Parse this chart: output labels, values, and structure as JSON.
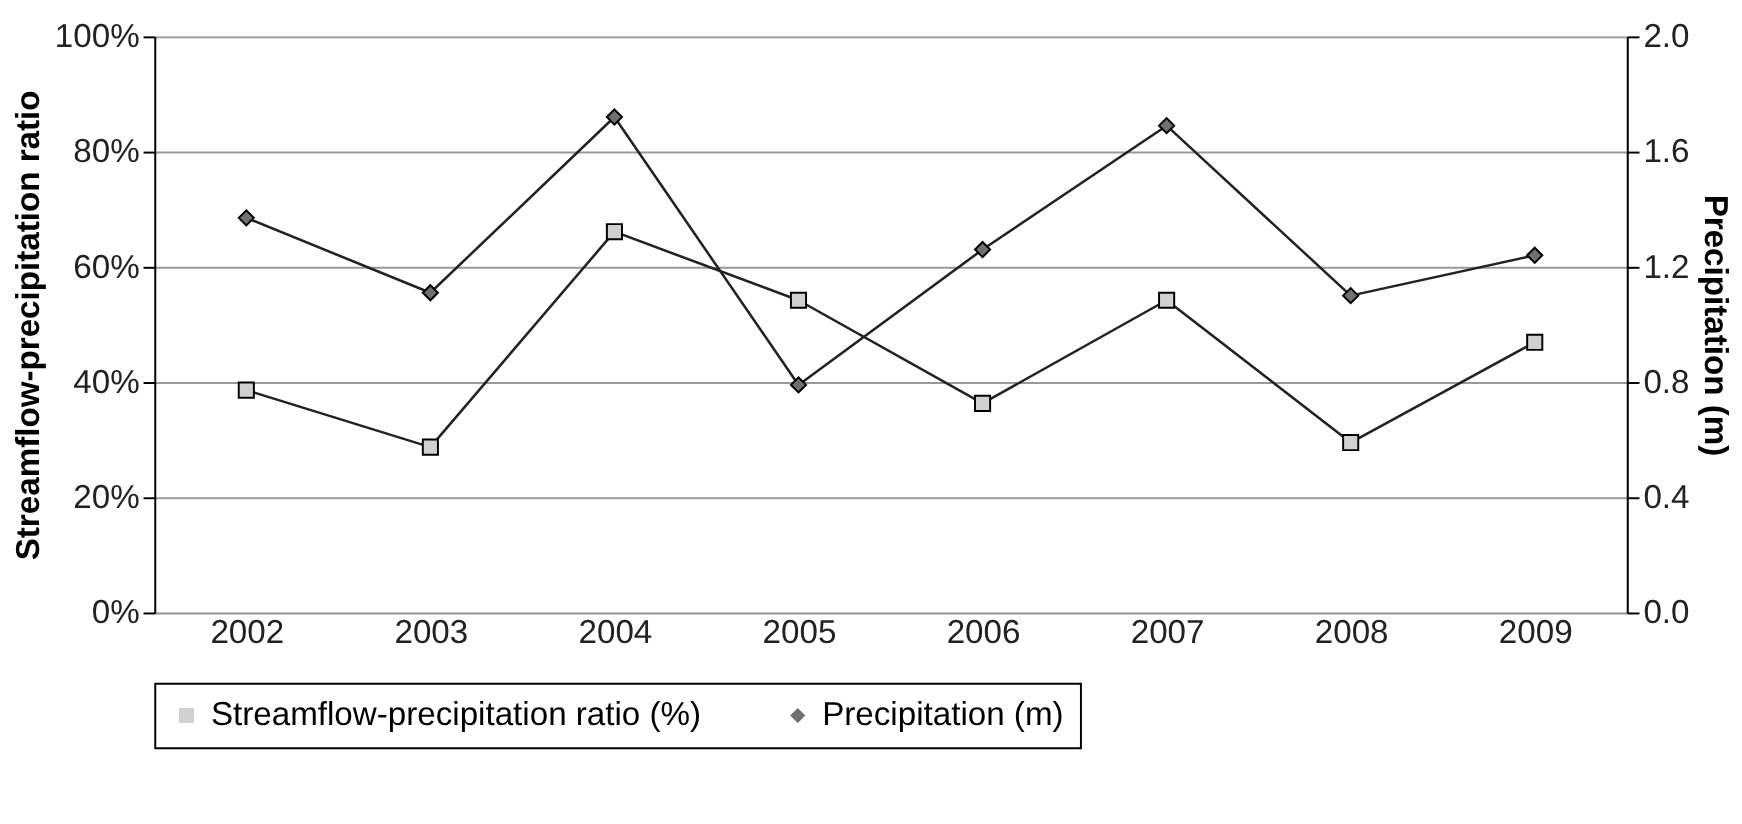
{
  "chart_data": {
    "type": "line",
    "categories": [
      "2002",
      "2003",
      "2004",
      "2005",
      "2006",
      "2007",
      "2008",
      "2009"
    ],
    "ylabel": "Streamflow-precipitation ratio",
    "y2label": "Precipitation (m)",
    "ylim": [
      0,
      100
    ],
    "yticks": [
      {
        "value": 0,
        "label": "0%"
      },
      {
        "value": 20,
        "label": "20%"
      },
      {
        "value": 40,
        "label": "40%"
      },
      {
        "value": 60,
        "label": "60%"
      },
      {
        "value": 80,
        "label": "80%"
      },
      {
        "value": 100,
        "label": "100%"
      }
    ],
    "y2lim": [
      0,
      2
    ],
    "y2ticks": [
      {
        "value": 0,
        "label": "0.0"
      },
      {
        "value": 0.4,
        "label": "0.4"
      },
      {
        "value": 0.8,
        "label": "0.8"
      },
      {
        "value": 1.2,
        "label": "1.2"
      },
      {
        "value": 1.6,
        "label": "1.6"
      },
      {
        "value": 2,
        "label": "2.0"
      }
    ],
    "grid": "y",
    "legend": "bottom",
    "series": [
      {
        "name": "Streamflow-precipitation ratio (%)",
        "color": "#d0d0d0",
        "marker": "square",
        "values": [
          38.6,
          28.7,
          66.1,
          54.2,
          36.3,
          54.2,
          29.5,
          46.9
        ]
      },
      {
        "name": "Precipitation (m)",
        "color": "#707070",
        "marker": "diamond",
        "axis": "y2",
        "values": [
          1.37,
          1.11,
          1.72,
          0.79,
          1.26,
          1.69,
          1.1,
          1.24
        ]
      }
    ]
  }
}
